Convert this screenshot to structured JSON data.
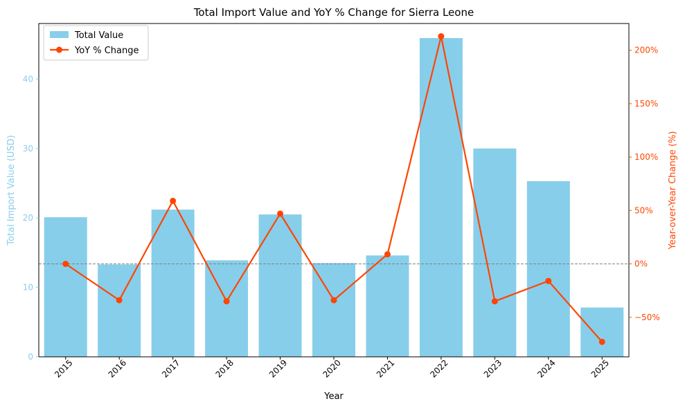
{
  "chart_data": {
    "type": "bar",
    "title": "Total Import Value and YoY % Change for Sierra Leone",
    "xlabel": "Year",
    "ylabel": "Total Import Value (USD)",
    "ylabel_right": "Year-over-Year Change (%)",
    "categories": [
      "2015",
      "2016",
      "2017",
      "2018",
      "2019",
      "2020",
      "2021",
      "2022",
      "2023",
      "2024",
      "2025"
    ],
    "series": [
      {
        "name": "Total Value",
        "type": "bar",
        "axis": "left",
        "color": "#87CEEB",
        "values": [
          20.1,
          13.3,
          21.2,
          13.9,
          20.5,
          13.5,
          14.6,
          45.9,
          30.0,
          25.3,
          7.1
        ]
      },
      {
        "name": "YoY % Change",
        "type": "line",
        "axis": "right",
        "color": "#FF4500",
        "values": [
          0,
          -34,
          59,
          -35,
          47,
          -34,
          9,
          213,
          -35,
          -16,
          -73
        ]
      }
    ],
    "ylim": [
      0,
      48
    ],
    "ylim_right": [
      -87,
      225
    ],
    "yticks": [
      0,
      10,
      20,
      30,
      40
    ],
    "yticks_right": [
      -50,
      0,
      50,
      100,
      150,
      200
    ],
    "yticks_right_labels": [
      "−50%",
      "0%",
      "50%",
      "100%",
      "150%",
      "200%"
    ],
    "reference_line": {
      "axis": "right",
      "value": 0,
      "style": "dashed",
      "color": "#808080"
    },
    "grid": false,
    "legend_position": "top-left",
    "left_axis_color": "#87CEEB",
    "right_axis_color": "#FF4500"
  }
}
